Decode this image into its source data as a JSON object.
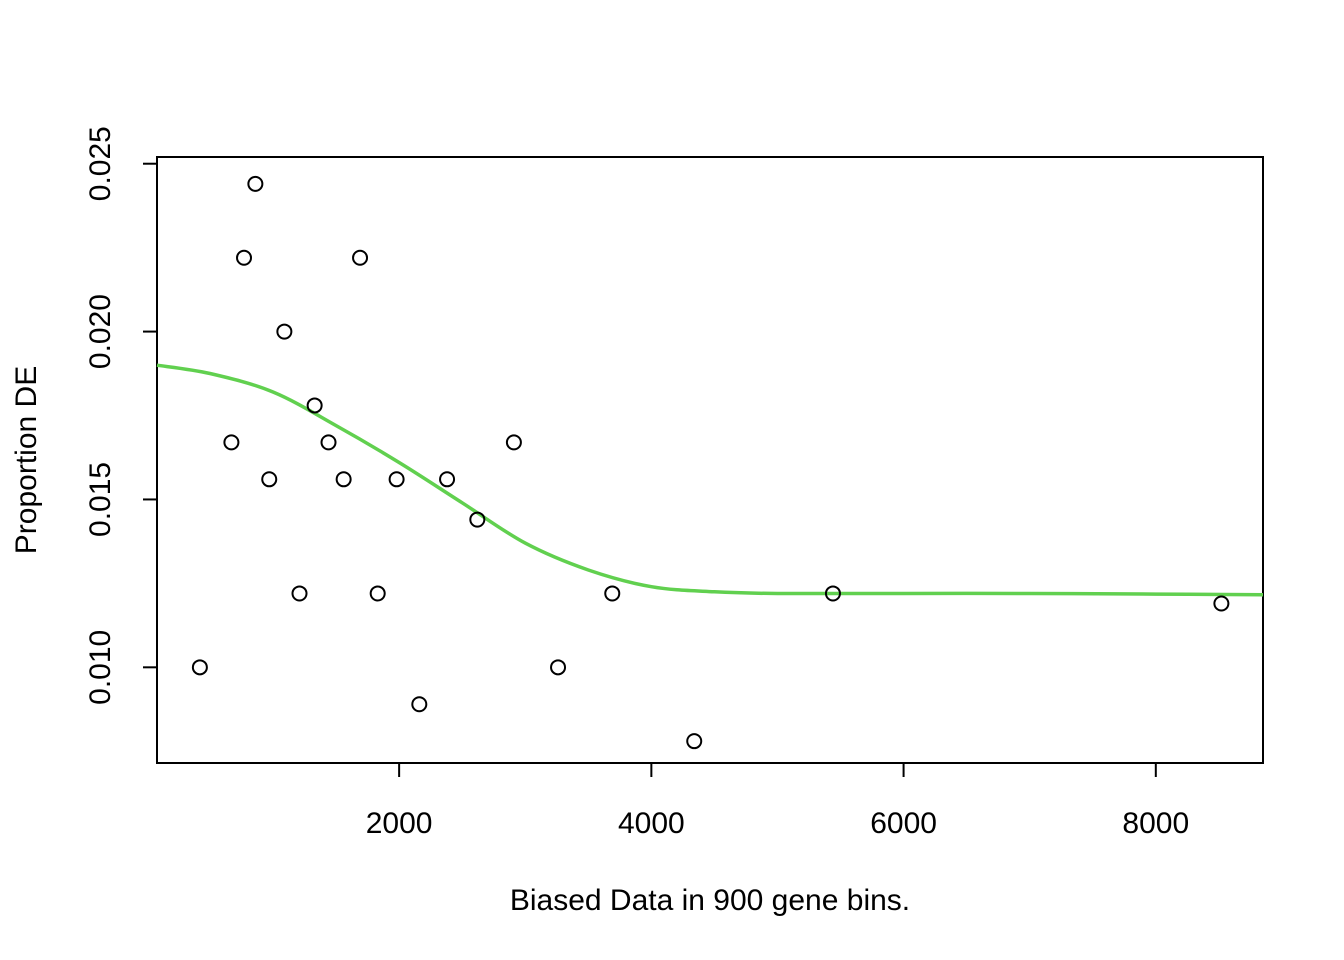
{
  "chart_data": {
    "type": "scatter",
    "title": "",
    "xlabel": "Biased Data in 900 gene bins.",
    "ylabel": "Proportion DE",
    "xlim": [
      80,
      8850
    ],
    "ylim": [
      0.00715,
      0.0252
    ],
    "x_ticks": [
      2000,
      4000,
      6000,
      8000
    ],
    "x_tick_labels": [
      "2000",
      "4000",
      "6000",
      "8000"
    ],
    "y_ticks": [
      0.01,
      0.015,
      0.02,
      0.025
    ],
    "y_tick_labels": [
      "0.010",
      "0.015",
      "0.020",
      "0.025"
    ],
    "grid": false,
    "points": [
      {
        "x": 420,
        "y": 0.01
      },
      {
        "x": 670,
        "y": 0.0167
      },
      {
        "x": 770,
        "y": 0.0222
      },
      {
        "x": 860,
        "y": 0.0244
      },
      {
        "x": 970,
        "y": 0.0156
      },
      {
        "x": 1090,
        "y": 0.02
      },
      {
        "x": 1210,
        "y": 0.0122
      },
      {
        "x": 1330,
        "y": 0.0178
      },
      {
        "x": 1440,
        "y": 0.0167
      },
      {
        "x": 1560,
        "y": 0.0156
      },
      {
        "x": 1690,
        "y": 0.0222
      },
      {
        "x": 1830,
        "y": 0.0122
      },
      {
        "x": 1980,
        "y": 0.0156
      },
      {
        "x": 2160,
        "y": 0.0089
      },
      {
        "x": 2380,
        "y": 0.0156
      },
      {
        "x": 2620,
        "y": 0.0144
      },
      {
        "x": 2910,
        "y": 0.0167
      },
      {
        "x": 3260,
        "y": 0.01
      },
      {
        "x": 3690,
        "y": 0.0122
      },
      {
        "x": 4340,
        "y": 0.0078
      },
      {
        "x": 5440,
        "y": 0.0122
      },
      {
        "x": 8520,
        "y": 0.0119
      }
    ],
    "fit_line": {
      "color": "#61d04f",
      "x": [
        80,
        500,
        1000,
        1500,
        2000,
        2500,
        3000,
        3500,
        4000,
        4500,
        5000,
        6000,
        7000,
        8000,
        8850
      ],
      "y": [
        0.019,
        0.01875,
        0.0182,
        0.0172,
        0.0161,
        0.0149,
        0.0137,
        0.0129,
        0.0124,
        0.01225,
        0.0122,
        0.0122,
        0.0122,
        0.01218,
        0.01216
      ]
    }
  }
}
